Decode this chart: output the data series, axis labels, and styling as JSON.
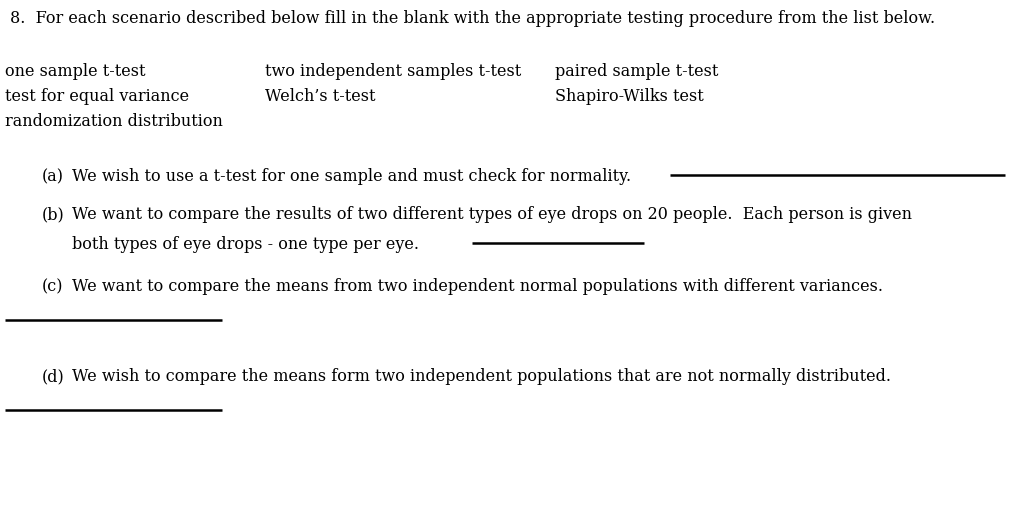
{
  "bg_color": "#ffffff",
  "title": "8.  For each scenario described below fill in the blank with the appropriate testing procedure from the list below.",
  "list_col1": [
    "one sample t-test",
    "test for equal variance",
    "randomization distribution"
  ],
  "list_col2": [
    "two independent samples t-test",
    "Welch’s t-test"
  ],
  "list_col3": [
    "paired sample t-test",
    "Shapiro-Wilks test"
  ],
  "font_family": "DejaVu Serif",
  "title_fontsize": 11.5,
  "body_fontsize": 11.5
}
